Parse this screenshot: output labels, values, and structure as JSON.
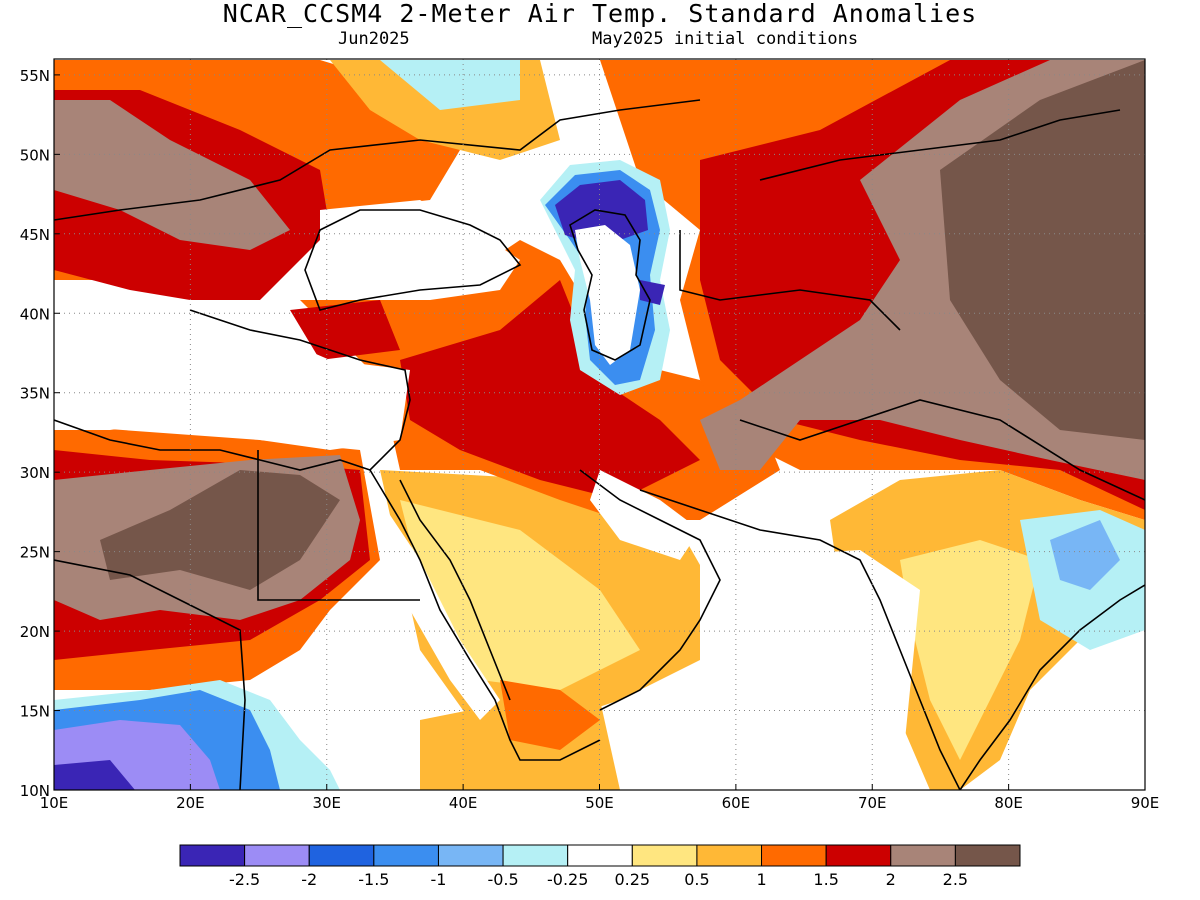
{
  "header": {
    "title": "NCAR_CCSM4 2-Meter Air Temp. Standard Anomalies",
    "valid_month": "Jun2025",
    "init_conditions": "May2025 initial conditions"
  },
  "map": {
    "lon_range": [
      10,
      90
    ],
    "lat_range": [
      10,
      56
    ],
    "lon_ticks": [
      {
        "value": 10,
        "label": "10E"
      },
      {
        "value": 20,
        "label": "20E"
      },
      {
        "value": 30,
        "label": "30E"
      },
      {
        "value": 40,
        "label": "40E"
      },
      {
        "value": 50,
        "label": "50E"
      },
      {
        "value": 60,
        "label": "60E"
      },
      {
        "value": 70,
        "label": "70E"
      },
      {
        "value": 80,
        "label": "80E"
      },
      {
        "value": 90,
        "label": "90E"
      }
    ],
    "lat_ticks": [
      {
        "value": 10,
        "label": "10N"
      },
      {
        "value": 15,
        "label": "15N"
      },
      {
        "value": 20,
        "label": "20N"
      },
      {
        "value": 25,
        "label": "25N"
      },
      {
        "value": 30,
        "label": "30N"
      },
      {
        "value": 35,
        "label": "35N"
      },
      {
        "value": 40,
        "label": "40N"
      },
      {
        "value": 45,
        "label": "45N"
      },
      {
        "value": 50,
        "label": "50N"
      },
      {
        "value": 55,
        "label": "55N"
      }
    ],
    "grid": "dotted",
    "anomaly_regions": [
      {
        "name": "northern-africa-saharan-warm-core",
        "class": "2 to 2.5+"
      },
      {
        "name": "arabian-peninsula-interior-warm",
        "class": "0.5 to 1"
      },
      {
        "name": "iraq-iran-levant-strong-warm",
        "class": "1.5 to 2"
      },
      {
        "name": "central-asia-strong-warm",
        "class": "2 to 2.5+"
      },
      {
        "name": "caspian-sea-coast-cold",
        "class": "-2.5 to -1"
      },
      {
        "name": "sahel-southwest-cold",
        "class": "-2.5 to -1"
      },
      {
        "name": "india-mild-warm",
        "class": "0.25 to 1"
      },
      {
        "name": "bay-of-bengal-cool",
        "class": "-1 to -0.25"
      }
    ]
  },
  "colorbar": {
    "colors": [
      "#3a25b5",
      "#9c8cf5",
      "#1f63e0",
      "#3b8ef0",
      "#78b6f5",
      "#b5f0f5",
      "#ffffff",
      "#ffe680",
      "#ffb836",
      "#ff6a00",
      "#cc0000",
      "#a88478",
      "#75564a"
    ],
    "labels": [
      "-2.5",
      "-2",
      "-1.5",
      "-1",
      "-0.5",
      "-0.25",
      "0.25",
      "0.5",
      "1",
      "1.5",
      "2",
      "2.5"
    ]
  }
}
